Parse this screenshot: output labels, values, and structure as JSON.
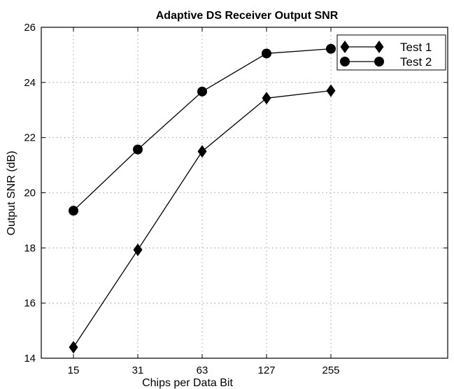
{
  "chart_data": {
    "type": "line",
    "title": "Adaptive DS Receiver Output SNR",
    "xlabel": "Chips per Data Bit",
    "ylabel": "Output SNR (dB)",
    "categories": [
      "15",
      "31",
      "63",
      "127",
      "255"
    ],
    "ylim": [
      14,
      26
    ],
    "yticks": [
      14,
      16,
      18,
      20,
      22,
      24,
      26
    ],
    "yticks_labels": [
      "14",
      "16",
      "18",
      "20",
      "22",
      "24",
      "26"
    ],
    "grid": true,
    "legend_position": "top-right",
    "series": [
      {
        "name": "Test 1",
        "marker": "diamond",
        "values": [
          14.4,
          17.93,
          21.5,
          23.43,
          23.7
        ]
      },
      {
        "name": "Test 2",
        "marker": "circle",
        "values": [
          19.35,
          21.57,
          23.67,
          25.05,
          25.22
        ]
      }
    ]
  }
}
